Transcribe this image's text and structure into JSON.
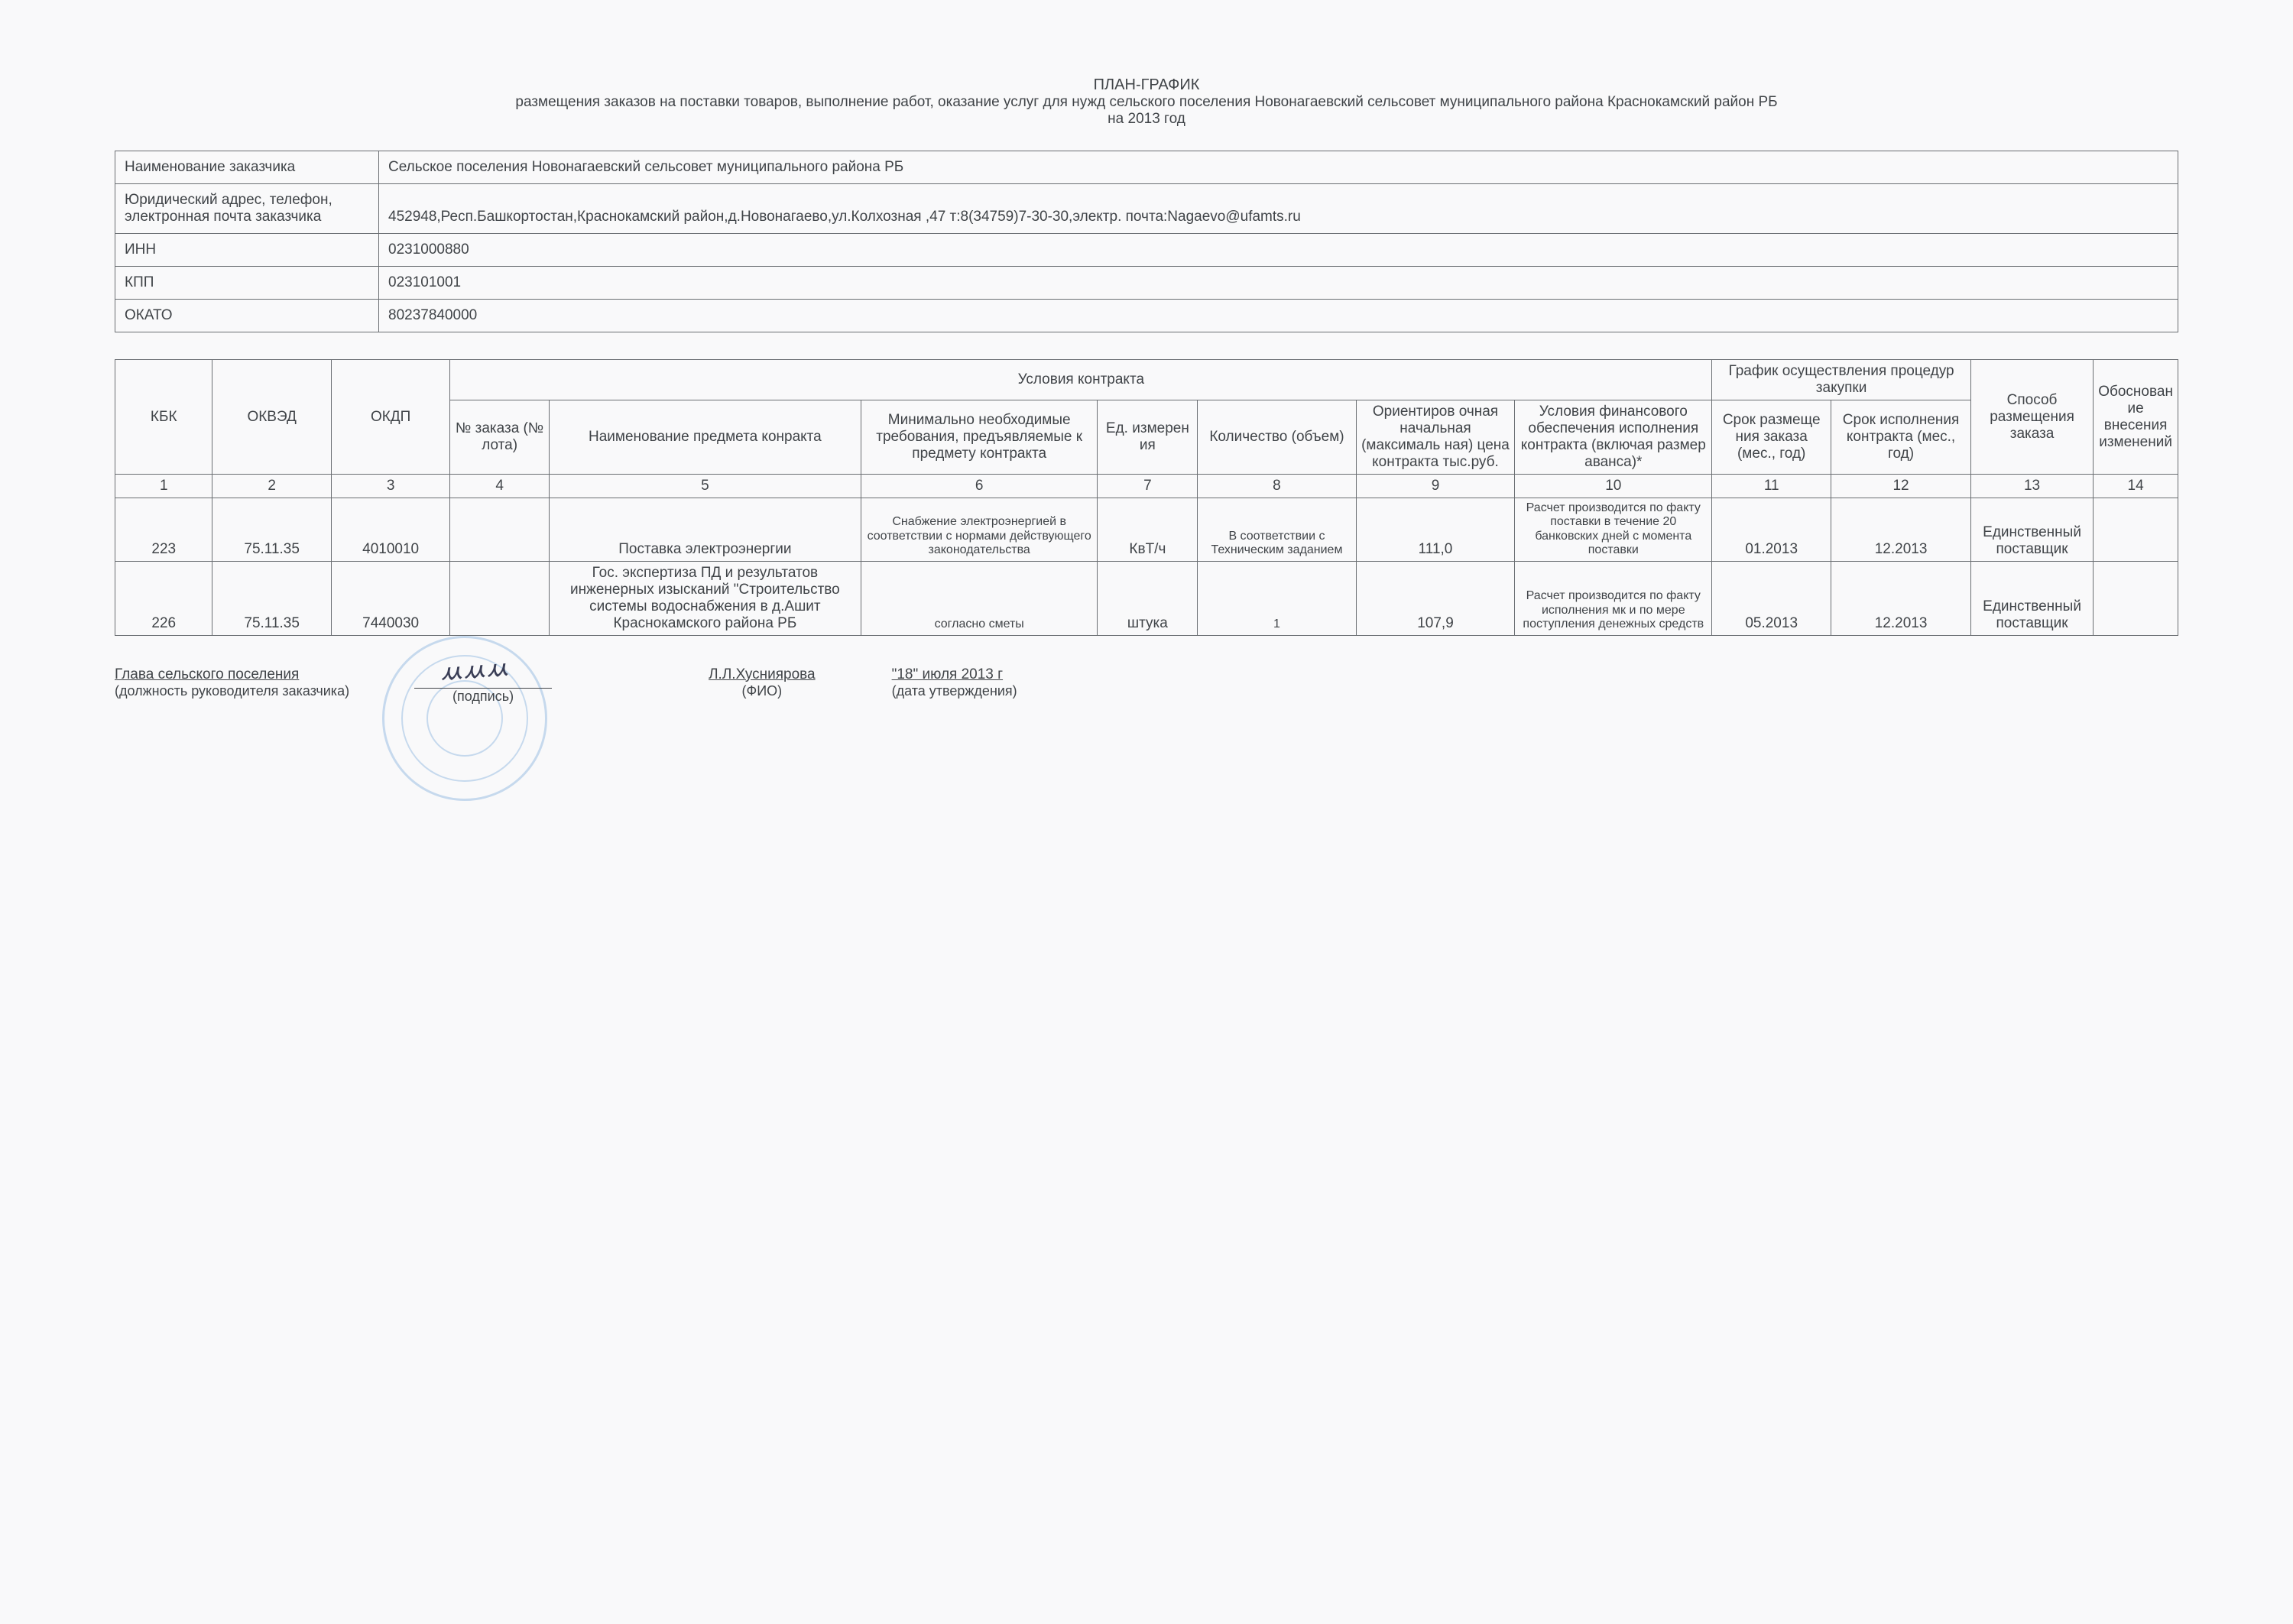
{
  "title": {
    "main": "ПЛАН-ГРАФИК",
    "sub": "размещения заказов на поставки товаров, выполнение работ, оказание услуг для нужд сельского поселения Новонагаевский сельсовет муниципального района Краснокамский район РБ",
    "year": "на 2013 год"
  },
  "info": {
    "rows": [
      {
        "label": "Наименование заказчика",
        "value": "Сельское поселения Новонагаевский сельсовет муниципального района РБ"
      },
      {
        "label": "Юридический адрес, телефон, электронная почта заказчика",
        "value": "452948,Респ.Башкортостан,Краснокамский район,д.Новонагаево,ул.Колхозная ,47 т:8(34759)7-30-30,электр. почта:Nagaevo@ufamts.ru"
      },
      {
        "label": "ИНН",
        "value": "0231000880"
      },
      {
        "label": "КПП",
        "value": "023101001"
      },
      {
        "label": "ОКАТО",
        "value": "80237840000"
      }
    ]
  },
  "main": {
    "group_headers": {
      "contract": "Условия контракта",
      "schedule": "График осуществления процедур закупки"
    },
    "columns": [
      "КБК",
      "ОКВЭД",
      "ОКДП",
      "№ заказа (№ лота)",
      "Наименование предмета конракта",
      "Минимально необходимые требования, предъявляемые к предмету контракта",
      "Ед. измерен ия",
      "Количество (объем)",
      "Ориентиров очная начальная (максималь ная) цена контракта тыс.руб.",
      "Условия финансового обеспечения исполнения контракта (включая размер аванса)*",
      "Срок размеще ния заказа (мес., год)",
      "Срок исполнения контракта (мес., год)",
      "Способ размещения заказа",
      "Обоснован ие внесения изменений"
    ],
    "numbers": [
      "1",
      "2",
      "3",
      "4",
      "5",
      "6",
      "7",
      "8",
      "9",
      "10",
      "11",
      "12",
      "13",
      "14"
    ],
    "rows": [
      {
        "c": [
          "223",
          "75.11.35",
          "4010010",
          "",
          "Поставка электроэнергии",
          "Снабжение электроэнергией в соответствии с нормами действующего законодательства",
          "КвТ/ч",
          "В соответствии с Техническим заданием",
          "111,0",
          "Расчет производится по факту поставки  в течение 20 банковских дней с момента поставки",
          "01.2013",
          "12.2013",
          "Единственный поставщик",
          ""
        ]
      },
      {
        "c": [
          "226",
          "75.11.35",
          "7440030",
          "",
          "Гос. экспертиза ПД и результатов инженерных изысканий \"Строительство системы водоснабжения в д.Ашит Краснокамского района РБ",
          "согласно сметы",
          "штука",
          "1",
          "107,9",
          "Расчет производится по факту исполнения мк и по мере поступления денежных средств",
          "05.2013",
          "12.2013",
          "Единственный поставщик",
          ""
        ]
      }
    ]
  },
  "footer": {
    "position": "Глава сельского поселения",
    "position_sub": "(должность руководителя заказчика)",
    "signature_sub": "(подпись)",
    "fio": "Л.Л.Хусниярова",
    "fio_sub": "(ФИО)",
    "date": "\"18\" июля 2013 г",
    "date_sub": "(дата утверждения)"
  },
  "layout": {
    "colwidths_pct": [
      5,
      6,
      6,
      5,
      16,
      12,
      5,
      8,
      8,
      10,
      6,
      7,
      9,
      7
    ]
  }
}
